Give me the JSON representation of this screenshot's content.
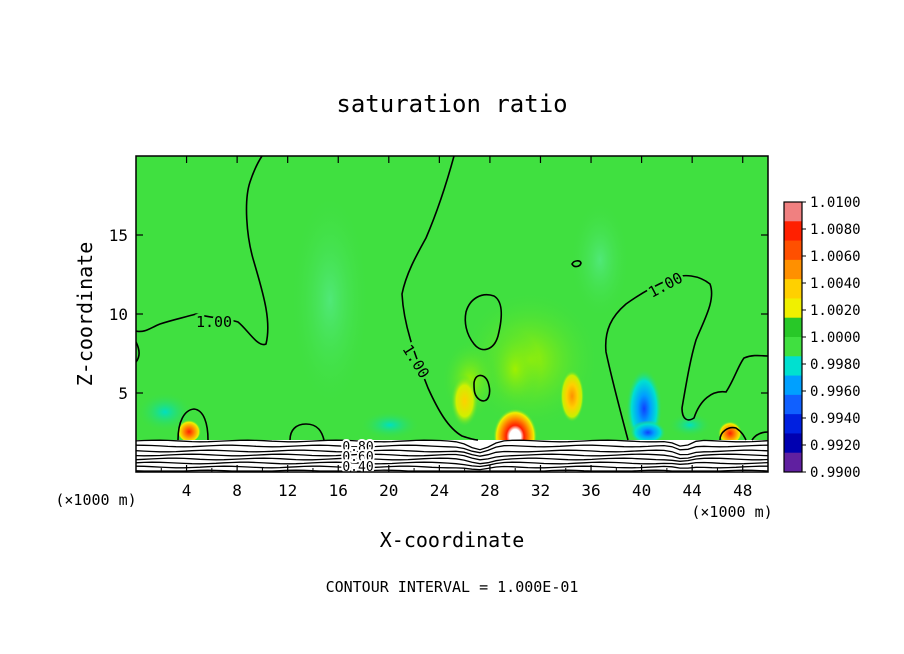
{
  "chart_data": {
    "type": "heatmap",
    "title": "saturation ratio",
    "xlabel": "X-coordinate",
    "ylabel": "Z-coordinate",
    "x_units_left": "(×1000 m)",
    "x_units_right": "(×1000 m)",
    "footer": "CONTOUR INTERVAL = 1.000E-01",
    "xlim": [
      0,
      50
    ],
    "ylim": [
      0,
      20
    ],
    "x_ticks": [
      "4",
      "8",
      "12",
      "16",
      "20",
      "24",
      "28",
      "32",
      "36",
      "40",
      "44",
      "48"
    ],
    "x_tick_values": [
      4,
      8,
      12,
      16,
      20,
      24,
      28,
      32,
      36,
      40,
      44,
      48
    ],
    "y_ticks": [
      "5",
      "10",
      "15"
    ],
    "y_tick_values": [
      5,
      10,
      15
    ],
    "colorbar": {
      "labels": [
        "1.0100",
        "1.0080",
        "1.0060",
        "1.0040",
        "1.0020",
        "1.0000",
        "0.9980",
        "0.9960",
        "0.9940",
        "0.9920",
        "0.9900"
      ],
      "colors": [
        "#f08080",
        "#ff2000",
        "#ff5000",
        "#ff9000",
        "#ffd000",
        "#f0f000",
        "#28c828",
        "#40e040",
        "#00e0d0",
        "#00a0ff",
        "#1060ff",
        "#0020e0",
        "#0000b0",
        "#6020a0"
      ]
    },
    "contour_labels": [
      "1.00",
      "1.00",
      "1.00",
      "0.80",
      "0.60",
      "0.40"
    ],
    "background_value": 1.0,
    "features": [
      {
        "x": 30.0,
        "z": 2.6,
        "value": 1.01
      },
      {
        "x": 34.5,
        "z": 4.8,
        "value": 1.004
      },
      {
        "x": 26.0,
        "z": 4.5,
        "value": 1.003
      },
      {
        "x": 4.2,
        "z": 2.7,
        "value": 1.006
      },
      {
        "x": 47.0,
        "z": 2.6,
        "value": 1.006
      },
      {
        "x": 40.2,
        "z": 4.0,
        "value": 0.994
      },
      {
        "x": 40.5,
        "z": 2.5,
        "value": 0.995
      },
      {
        "x": 30.0,
        "z": 6.5,
        "value": 1.0015
      }
    ]
  }
}
